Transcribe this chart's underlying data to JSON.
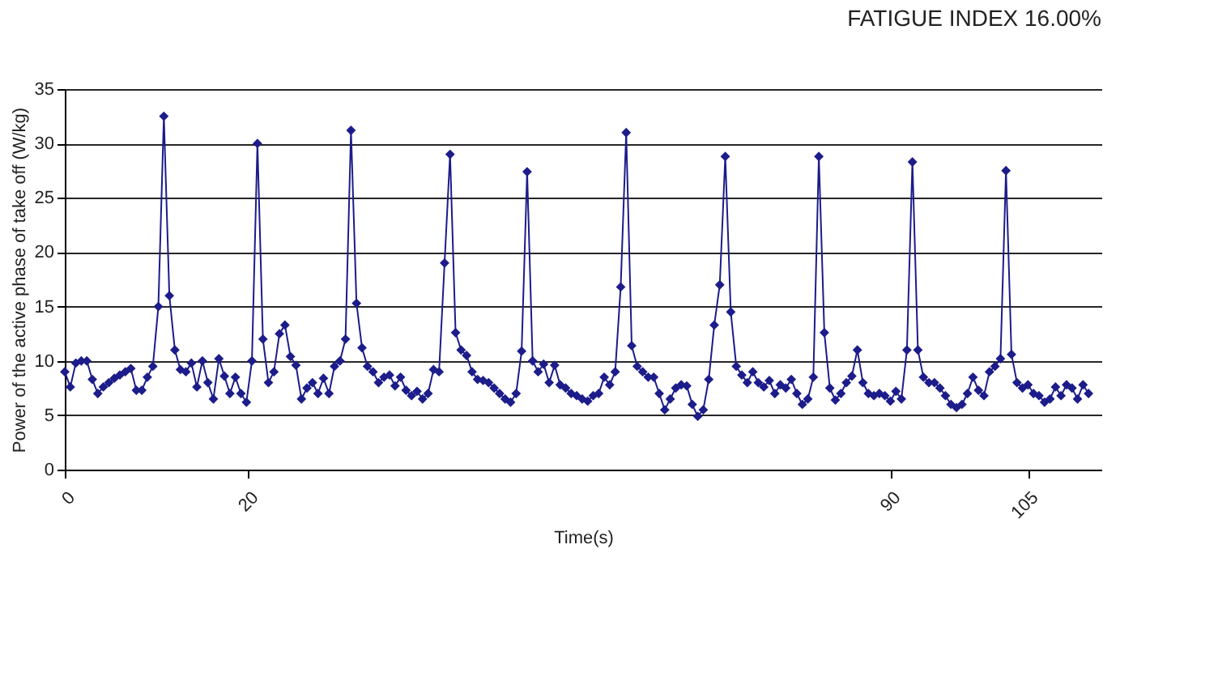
{
  "chart_data": {
    "type": "line",
    "title": "FATIGUE INDEX 16.00%",
    "xlabel": "Time(s)",
    "ylabel": "Power of the active phase of take off (W/kg)",
    "x": [
      0,
      0.6,
      1.2,
      1.8,
      2.4,
      3,
      3.6,
      4.2,
      4.8,
      5.4,
      6,
      6.6,
      7.2,
      7.8,
      8.4,
      9,
      9.6,
      10.2,
      10.8,
      11.4,
      12,
      12.6,
      13.2,
      13.8,
      14.4,
      15,
      15.6,
      16.2,
      16.8,
      17.4,
      18,
      18.6,
      19.2,
      19.8,
      20.4,
      21,
      21.6,
      22.2,
      22.8,
      23.4,
      24,
      24.6,
      25.2,
      25.8,
      26.4,
      27,
      27.6,
      28.2,
      28.8,
      29.4,
      30,
      30.6,
      31.2,
      31.8,
      32.4,
      33,
      33.6,
      34.2,
      34.8,
      35.4,
      36,
      36.6,
      37.2,
      37.8,
      38.4,
      39,
      39.6,
      40.2,
      40.8,
      41.4,
      42,
      42.6,
      43.2,
      43.8,
      44.4,
      45,
      45.6,
      46.2,
      46.8,
      47.4,
      48,
      48.6,
      49.2,
      49.8,
      50.4,
      51,
      51.6,
      52.2,
      52.8,
      53.4,
      54,
      54.6,
      55.2,
      55.8,
      56.4,
      57,
      57.6,
      58.2,
      58.8,
      59.4,
      60,
      60.6,
      61.2,
      61.8,
      62.4,
      63,
      63.6,
      64.2,
      64.8,
      65.4,
      66,
      66.6,
      67.2,
      67.8,
      68.4,
      69,
      69.6,
      70.2,
      70.8,
      71.4,
      72,
      72.6,
      73.2,
      73.8,
      74.4,
      75,
      75.6,
      76.2,
      76.8,
      77.4,
      78,
      78.6,
      79.2,
      79.8,
      80.4,
      81,
      81.6,
      82.2,
      82.8,
      83.4,
      84,
      84.6,
      85.2,
      85.8,
      86.4,
      87,
      87.6,
      88.2,
      88.8,
      89.4,
      90,
      90.6,
      91.2,
      91.8,
      92.4,
      93,
      93.6,
      94.2,
      94.8,
      95.4,
      96,
      96.6,
      97.2,
      97.8,
      98.4,
      99,
      99.6,
      100.2,
      100.8,
      101.4,
      102,
      102.6,
      103.2,
      103.8,
      104.4,
      105,
      105.6,
      106.2,
      106.8,
      107.4,
      108,
      108.6,
      109.2,
      109.8,
      110.4,
      111,
      111.6
    ],
    "series": [
      {
        "color": "#1c1c8a",
        "values": [
          9,
          7.6,
          9.8,
          10,
          10,
          8.3,
          7,
          7.6,
          8,
          8.4,
          8.7,
          9,
          9.3,
          7.3,
          7.3,
          8.5,
          9.5,
          15,
          32.5,
          16,
          11,
          9.2,
          9,
          9.8,
          7.6,
          10,
          8,
          6.5,
          10.2,
          8.6,
          7,
          8.5,
          7,
          6.2,
          10,
          30,
          12,
          8,
          9,
          12.5,
          13.3,
          10.4,
          9.6,
          6.5,
          7.5,
          8,
          7,
          8.4,
          7,
          9.5,
          10,
          12,
          31.2,
          15.3,
          11.2,
          9.5,
          9,
          8,
          8.5,
          8.7,
          7.7,
          8.5,
          7.3,
          6.8,
          7.2,
          6.5,
          7,
          9.2,
          9,
          19,
          29,
          12.6,
          11,
          10.5,
          9,
          8.3,
          8.2,
          8,
          7.5,
          7,
          6.5,
          6.2,
          7,
          10.9,
          27.4,
          10,
          9,
          9.7,
          8,
          9.6,
          7.8,
          7.5,
          7,
          6.8,
          6.5,
          6.3,
          6.8,
          7,
          8.5,
          7.8,
          9,
          16.8,
          31,
          11.4,
          9.5,
          9,
          8.5,
          8.5,
          7,
          5.5,
          6.5,
          7.5,
          7.8,
          7.7,
          6,
          4.9,
          5.5,
          8.3,
          13.3,
          17,
          28.8,
          14.5,
          9.5,
          8.7,
          8,
          9,
          8,
          7.6,
          8.2,
          7,
          7.8,
          7.5,
          8.3,
          7,
          6,
          6.5,
          8.5,
          28.8,
          12.6,
          7.5,
          6.4,
          7,
          8,
          8.6,
          11,
          8,
          7,
          6.8,
          7,
          6.8,
          6.3,
          7.2,
          6.5,
          11,
          28.3,
          11,
          8.5,
          8,
          8,
          7.5,
          6.8,
          6,
          5.7,
          6,
          7,
          8.5,
          7.3,
          6.8,
          9,
          9.5,
          10.2,
          27.5,
          10.6,
          8,
          7.5,
          7.8,
          7,
          6.8,
          6.2,
          6.5,
          7.6,
          6.8,
          7.8,
          7.5,
          6.5,
          7.8,
          7
        ]
      }
    ],
    "xlim": [
      0,
      113
    ],
    "xticks": [
      0,
      20,
      90,
      105
    ],
    "ylim": [
      0,
      35
    ],
    "yticks": [
      0,
      5,
      10,
      15,
      20,
      25,
      30,
      35
    ],
    "grid": "y",
    "marker": "diamond",
    "line_style": "solid"
  }
}
